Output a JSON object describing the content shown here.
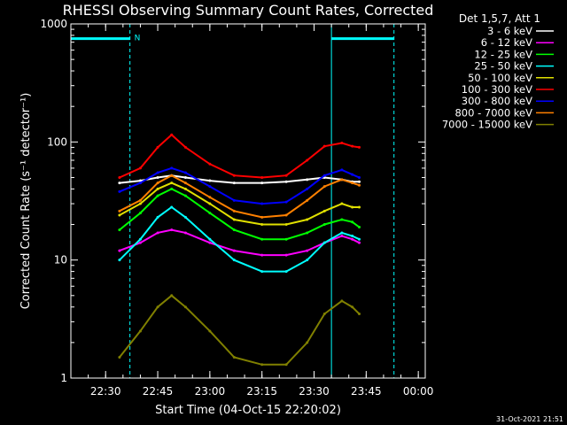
{
  "chart_data": {
    "type": "line",
    "title": "RHESSI Observing Summary Count Rates, Corrected",
    "xlabel": "Start Time (04-Oct-15 22:20:02)",
    "ylabel": "Corrected Count Rate (s⁻¹ detector⁻¹)",
    "yscale": "log",
    "ylim": [
      1,
      1000
    ],
    "xlim": [
      "22:20",
      "00:02"
    ],
    "x_ticks": [
      "22:30",
      "22:45",
      "23:00",
      "23:15",
      "23:30",
      "23:45",
      "00:00"
    ],
    "y_ticks": [
      "1",
      "10",
      "100",
      "1000"
    ],
    "legend_title": "Det 1,5,7, Att 1",
    "legend_placement": "right",
    "x": [
      "22:34",
      "22:40",
      "22:45",
      "22:49",
      "22:53",
      "23:00",
      "23:07",
      "23:15",
      "23:22",
      "23:28",
      "23:33",
      "23:38",
      "23:41",
      "23:43"
    ],
    "series": [
      {
        "name": "3 - 6 keV",
        "color": "#ffffff",
        "values": [
          45,
          47,
          50,
          52,
          50,
          47,
          45,
          45,
          46,
          48,
          50,
          48,
          46,
          46
        ]
      },
      {
        "name": "6 - 12 keV",
        "color": "#ff00ff",
        "values": [
          12,
          14,
          17,
          18,
          17,
          14,
          12,
          11,
          11,
          12,
          14,
          16,
          15,
          14
        ]
      },
      {
        "name": "12 - 25 keV",
        "color": "#00ff00",
        "values": [
          18,
          25,
          35,
          40,
          35,
          25,
          18,
          15,
          15,
          17,
          20,
          22,
          21,
          19
        ]
      },
      {
        "name": "25 - 50 keV",
        "color": "#00ffff",
        "values": [
          10,
          15,
          23,
          28,
          23,
          15,
          10,
          8,
          8,
          10,
          14,
          17,
          16,
          15
        ]
      },
      {
        "name": "50 - 100 keV",
        "color": "#e0e000",
        "values": [
          24,
          30,
          40,
          45,
          40,
          30,
          22,
          20,
          20,
          22,
          26,
          30,
          28,
          28
        ]
      },
      {
        "name": "100 - 300 keV",
        "color": "#ff0000",
        "values": [
          50,
          60,
          90,
          115,
          90,
          65,
          52,
          50,
          52,
          70,
          92,
          98,
          92,
          90
        ]
      },
      {
        "name": "300 - 800 keV",
        "color": "#0000ff",
        "values": [
          38,
          45,
          55,
          60,
          55,
          42,
          32,
          30,
          31,
          40,
          52,
          58,
          53,
          50
        ]
      },
      {
        "name": "800 - 7000 keV",
        "color": "#ff8000",
        "values": [
          26,
          32,
          45,
          52,
          45,
          34,
          26,
          23,
          24,
          32,
          42,
          48,
          45,
          43
        ]
      },
      {
        "name": "7000 - 15000 keV",
        "color": "#808000",
        "values": [
          1.5,
          2.5,
          4,
          5,
          4,
          2.5,
          1.5,
          1.3,
          1.3,
          2,
          3.5,
          4.5,
          4,
          3.5
        ]
      }
    ],
    "attenuator_markers": [
      {
        "label": "N",
        "start": "22:20",
        "end": "22:37",
        "level": 750
      },
      {
        "label": "",
        "start": "23:35",
        "end": "23:53",
        "level": 750
      }
    ],
    "timestamp": "31-Oct-2021 21:51"
  }
}
